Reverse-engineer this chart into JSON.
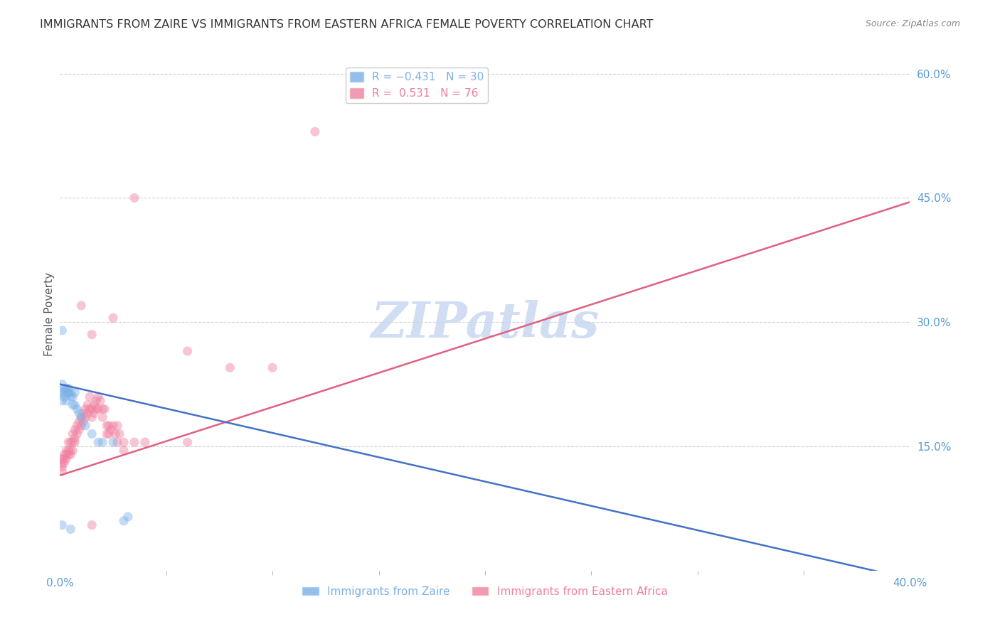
{
  "title": "IMMIGRANTS FROM ZAIRE VS IMMIGRANTS FROM EASTERN AFRICA FEMALE POVERTY CORRELATION CHART",
  "source": "Source: ZipAtlas.com",
  "ylabel": "Female Poverty",
  "xlim": [
    0.0,
    0.4
  ],
  "ylim": [
    0.0,
    0.62
  ],
  "right_yticks": [
    0.6,
    0.45,
    0.3,
    0.15
  ],
  "watermark": "ZIPatlas",
  "legend_series": [
    {
      "name": "Immigrants from Zaire",
      "color": "#7ab0e8"
    },
    {
      "name": "Immigrants from Eastern Africa",
      "color": "#f08080"
    }
  ],
  "zaire_scatter": [
    [
      0.001,
      0.215
    ],
    [
      0.001,
      0.225
    ],
    [
      0.001,
      0.205
    ],
    [
      0.002,
      0.22
    ],
    [
      0.002,
      0.215
    ],
    [
      0.002,
      0.21
    ],
    [
      0.003,
      0.215
    ],
    [
      0.003,
      0.22
    ],
    [
      0.003,
      0.205
    ],
    [
      0.004,
      0.215
    ],
    [
      0.004,
      0.22
    ],
    [
      0.005,
      0.21
    ],
    [
      0.005,
      0.215
    ],
    [
      0.006,
      0.2
    ],
    [
      0.006,
      0.21
    ],
    [
      0.007,
      0.215
    ],
    [
      0.007,
      0.2
    ],
    [
      0.008,
      0.195
    ],
    [
      0.009,
      0.19
    ],
    [
      0.01,
      0.185
    ],
    [
      0.001,
      0.29
    ],
    [
      0.012,
      0.175
    ],
    [
      0.015,
      0.165
    ],
    [
      0.018,
      0.155
    ],
    [
      0.02,
      0.155
    ],
    [
      0.025,
      0.155
    ],
    [
      0.03,
      0.06
    ],
    [
      0.032,
      0.065
    ],
    [
      0.001,
      0.055
    ],
    [
      0.005,
      0.05
    ]
  ],
  "eastern_scatter": [
    [
      0.001,
      0.125
    ],
    [
      0.001,
      0.135
    ],
    [
      0.001,
      0.13
    ],
    [
      0.001,
      0.12
    ],
    [
      0.002,
      0.14
    ],
    [
      0.002,
      0.13
    ],
    [
      0.002,
      0.135
    ],
    [
      0.003,
      0.145
    ],
    [
      0.003,
      0.14
    ],
    [
      0.003,
      0.135
    ],
    [
      0.004,
      0.155
    ],
    [
      0.004,
      0.145
    ],
    [
      0.004,
      0.14
    ],
    [
      0.005,
      0.155
    ],
    [
      0.005,
      0.145
    ],
    [
      0.005,
      0.14
    ],
    [
      0.006,
      0.165
    ],
    [
      0.006,
      0.155
    ],
    [
      0.006,
      0.145
    ],
    [
      0.007,
      0.17
    ],
    [
      0.007,
      0.16
    ],
    [
      0.007,
      0.155
    ],
    [
      0.008,
      0.175
    ],
    [
      0.008,
      0.165
    ],
    [
      0.009,
      0.18
    ],
    [
      0.009,
      0.17
    ],
    [
      0.01,
      0.185
    ],
    [
      0.01,
      0.175
    ],
    [
      0.011,
      0.19
    ],
    [
      0.011,
      0.18
    ],
    [
      0.012,
      0.195
    ],
    [
      0.012,
      0.185
    ],
    [
      0.013,
      0.2
    ],
    [
      0.013,
      0.19
    ],
    [
      0.014,
      0.21
    ],
    [
      0.014,
      0.195
    ],
    [
      0.015,
      0.195
    ],
    [
      0.015,
      0.185
    ],
    [
      0.016,
      0.2
    ],
    [
      0.016,
      0.19
    ],
    [
      0.017,
      0.205
    ],
    [
      0.017,
      0.195
    ],
    [
      0.018,
      0.21
    ],
    [
      0.018,
      0.195
    ],
    [
      0.019,
      0.205
    ],
    [
      0.02,
      0.195
    ],
    [
      0.02,
      0.185
    ],
    [
      0.021,
      0.195
    ],
    [
      0.022,
      0.175
    ],
    [
      0.022,
      0.165
    ],
    [
      0.023,
      0.175
    ],
    [
      0.023,
      0.165
    ],
    [
      0.024,
      0.17
    ],
    [
      0.025,
      0.175
    ],
    [
      0.026,
      0.165
    ],
    [
      0.027,
      0.175
    ],
    [
      0.027,
      0.155
    ],
    [
      0.028,
      0.165
    ],
    [
      0.03,
      0.155
    ],
    [
      0.03,
      0.145
    ],
    [
      0.035,
      0.155
    ],
    [
      0.04,
      0.155
    ],
    [
      0.06,
      0.155
    ],
    [
      0.08,
      0.245
    ],
    [
      0.01,
      0.32
    ],
    [
      0.015,
      0.285
    ],
    [
      0.025,
      0.305
    ],
    [
      0.06,
      0.265
    ],
    [
      0.1,
      0.245
    ],
    [
      0.035,
      0.45
    ],
    [
      0.12,
      0.53
    ],
    [
      0.015,
      0.055
    ]
  ],
  "zaire_line": {
    "x": [
      0.0,
      0.4
    ],
    "y": [
      0.225,
      -0.01
    ]
  },
  "eastern_line": {
    "x": [
      0.0,
      0.4
    ],
    "y": [
      0.115,
      0.445
    ]
  },
  "background_color": "#ffffff",
  "plot_bg_color": "#ffffff",
  "grid_color": "#d3d3d3",
  "title_color": "#333333",
  "title_fontsize": 11.5,
  "axis_label_color": "#555555",
  "right_tick_color": "#5b9bd5",
  "bottom_tick_color": "#5b9bd5",
  "scatter_size": 90,
  "scatter_alpha": 0.45,
  "line_width": 1.8,
  "watermark_color": "#c8d8f0",
  "watermark_fontsize": 50,
  "zaire_color": "#7ab0e8",
  "eastern_color": "#f080a0",
  "zaire_line_color": "#4472c4",
  "eastern_line_color": "#e06080"
}
